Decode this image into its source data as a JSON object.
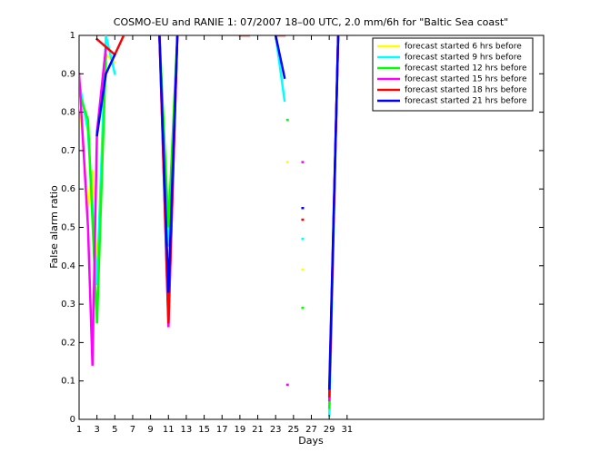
{
  "chart_data": {
    "type": "line",
    "title": "COSMO-EU and RANIE 1: 07/2007 18–00 UTC, 2.0 mm/6h for \"Baltic Sea coast\"",
    "x_label": "Days",
    "y_label": "False alarm ratio",
    "xlim": [
      1,
      53
    ],
    "ylim": [
      0,
      1
    ],
    "xticks": [
      1,
      3,
      5,
      7,
      9,
      11,
      13,
      15,
      17,
      19,
      21,
      23,
      25,
      27,
      29,
      31
    ],
    "yticks": [
      0,
      0.1,
      0.2,
      0.3,
      0.4,
      0.5,
      0.6,
      0.7,
      0.8,
      0.9,
      1
    ],
    "legend": "upper right",
    "series": [
      {
        "name": "forecast started 6 hrs before",
        "color": "#ffff00",
        "x": [
          1,
          2,
          2.5,
          3,
          4,
          5,
          7,
          10,
          11,
          12,
          18,
          24.3,
          25,
          26,
          27,
          29,
          30
        ],
        "values": [
          0.85,
          0.55,
          0.65,
          0.38,
          0.95,
          0.93,
          null,
          1,
          0.5,
          1,
          null,
          0.67,
          null,
          0.39,
          null,
          0.02,
          1
        ]
      },
      {
        "name": "forecast started 9 hrs before",
        "color": "#00ffff",
        "x": [
          1,
          2,
          3,
          4,
          5,
          7,
          10,
          11,
          12,
          18,
          23,
          24,
          25,
          26,
          27,
          29,
          30
        ],
        "values": [
          0.88,
          0.75,
          0.35,
          1,
          0.9,
          null,
          1,
          0.45,
          1,
          null,
          1,
          0.83,
          null,
          0.47,
          null,
          0.01,
          1
        ]
      },
      {
        "name": "forecast started 12 hrs before",
        "color": "#00ff00",
        "x": [
          1,
          2,
          3,
          4,
          7,
          10,
          11,
          12,
          18,
          24.3,
          25,
          26,
          27,
          29,
          30
        ],
        "values": [
          0.85,
          0.78,
          0.25,
          0.95,
          null,
          1,
          0.5,
          1,
          null,
          0.78,
          null,
          0.29,
          null,
          0.03,
          1
        ]
      },
      {
        "name": "forecast started 15 hrs before",
        "color": "#ff00ff",
        "x": [
          1,
          2,
          2.5,
          3,
          4,
          7,
          10,
          11,
          12,
          18,
          24.3,
          25,
          26,
          27,
          29,
          30
        ],
        "values": [
          0.9,
          0.5,
          0.14,
          0.75,
          0.97,
          null,
          1,
          0.24,
          1,
          null,
          0.09,
          null,
          0.67,
          null,
          0.05,
          1
        ]
      },
      {
        "name": "forecast started 18 hrs before",
        "color": "#ff0000",
        "x": [
          3,
          4,
          5,
          6,
          8,
          10,
          11,
          12,
          15,
          19,
          20,
          21,
          23,
          24,
          25,
          26,
          27,
          29,
          30
        ],
        "values": [
          0.99,
          0.97,
          0.95,
          1,
          null,
          1,
          0.25,
          1,
          null,
          1,
          1,
          null,
          1,
          1,
          null,
          0.52,
          null,
          0.06,
          1
        ]
      },
      {
        "name": "forecast started 21 hrs before",
        "color": "#0000ff",
        "x": [
          3,
          4,
          5,
          7,
          10,
          11,
          12,
          15,
          23,
          24,
          25,
          26,
          27,
          29,
          30
        ],
        "values": [
          0.74,
          0.9,
          0.95,
          null,
          1,
          0.33,
          1,
          null,
          1,
          0.89,
          null,
          0.55,
          null,
          0.08,
          1
        ]
      }
    ]
  }
}
